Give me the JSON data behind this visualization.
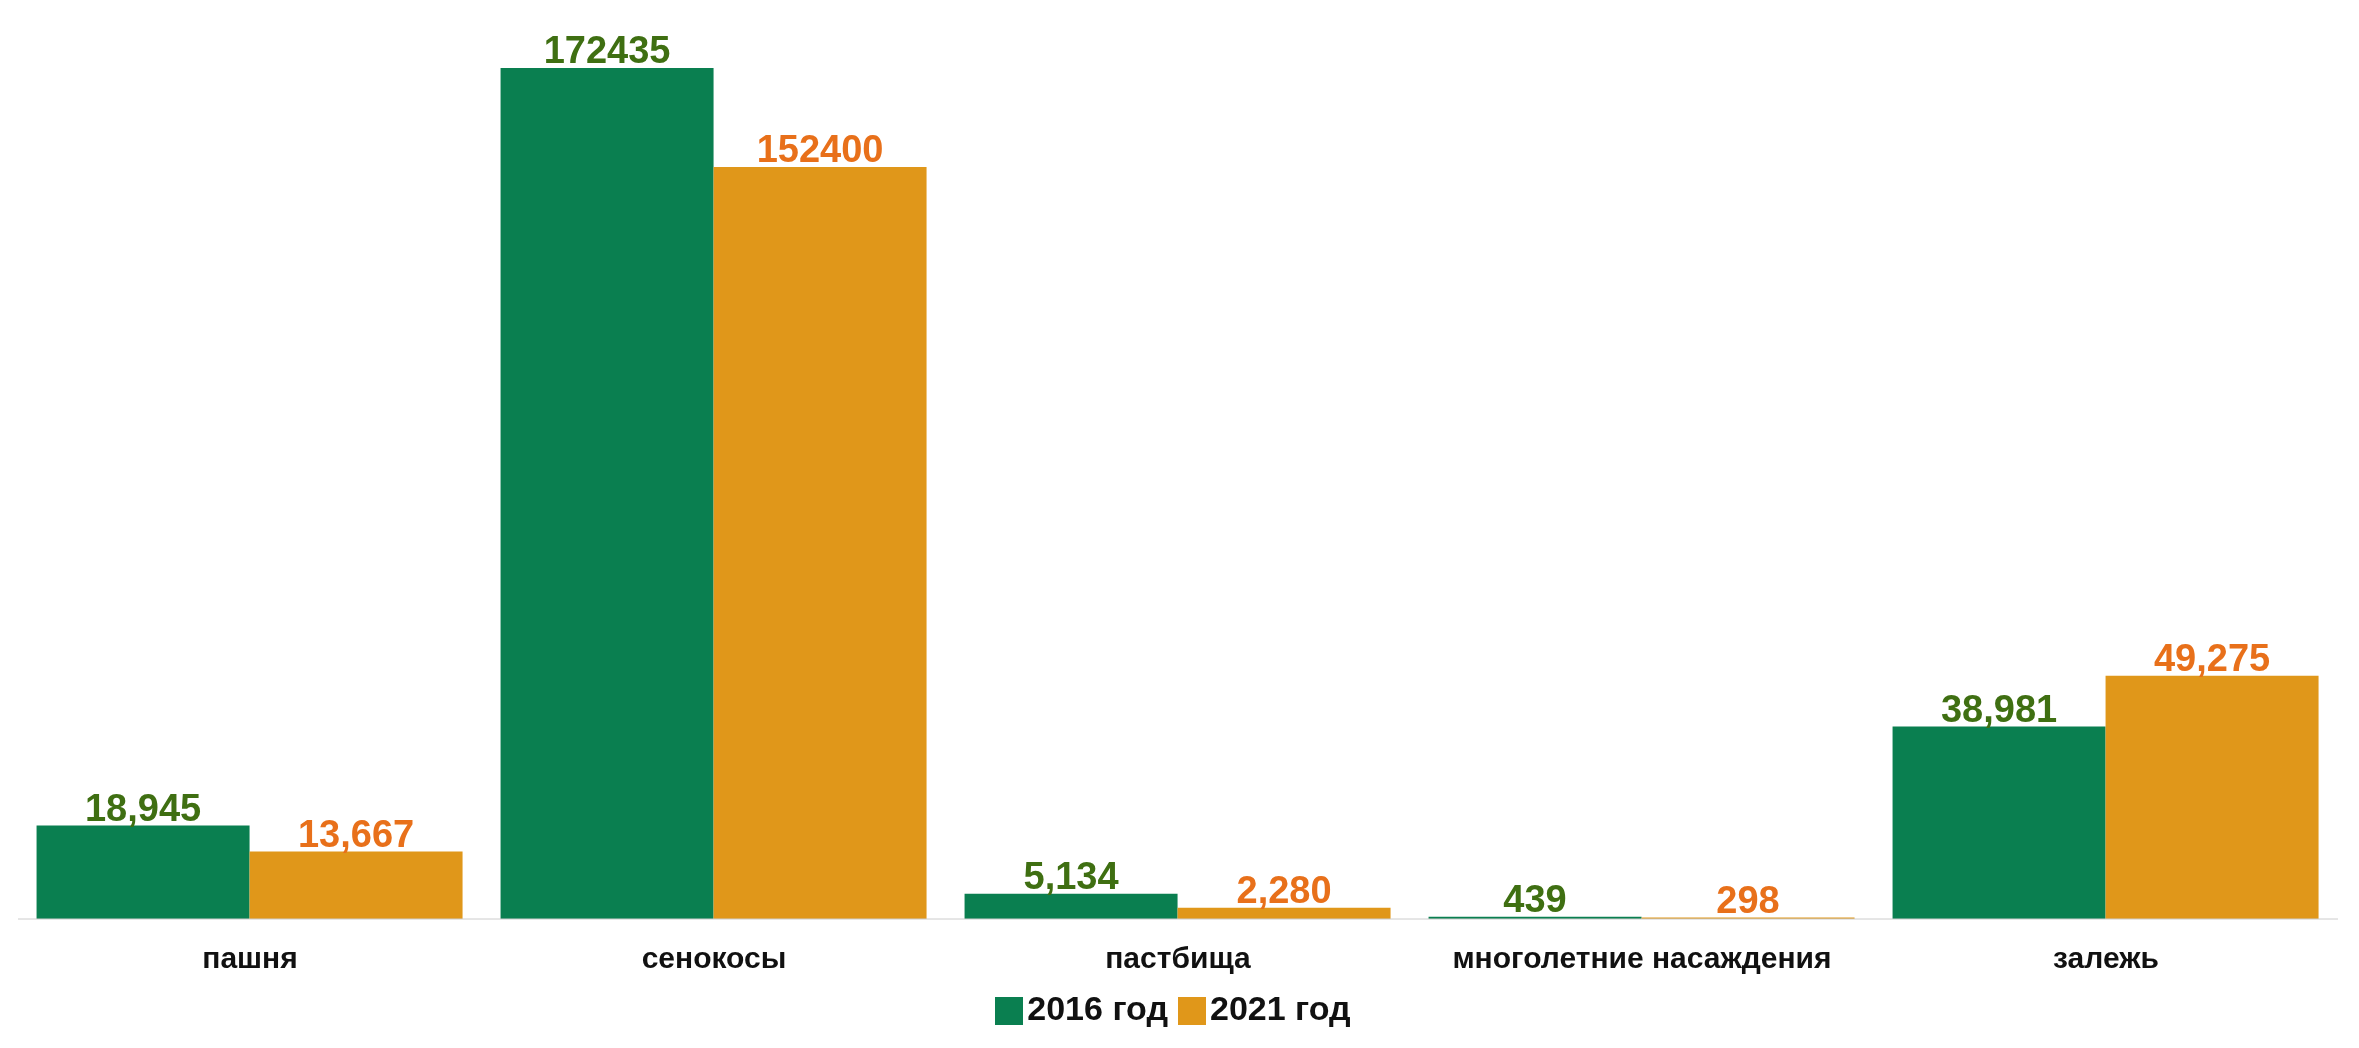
{
  "chart_data": {
    "type": "bar",
    "categories": [
      "пашня",
      "сенокосы",
      "пастбища",
      "многолетние насаждения",
      "залежь"
    ],
    "series": [
      {
        "name": "2016 год",
        "color": "#0a7f50",
        "values": [
          18945,
          172435,
          5134,
          439,
          38981
        ],
        "value_labels": [
          "18,945",
          "172435",
          "5,134",
          "439",
          "38,981"
        ]
      },
      {
        "name": "2021 год",
        "color": "#e0971a",
        "values": [
          13667,
          152400,
          2280,
          298,
          49275
        ],
        "value_labels": [
          "13,667",
          "152400",
          "2,280",
          "298",
          "49,275"
        ]
      }
    ],
    "legend": "bottom",
    "grid": false
  }
}
